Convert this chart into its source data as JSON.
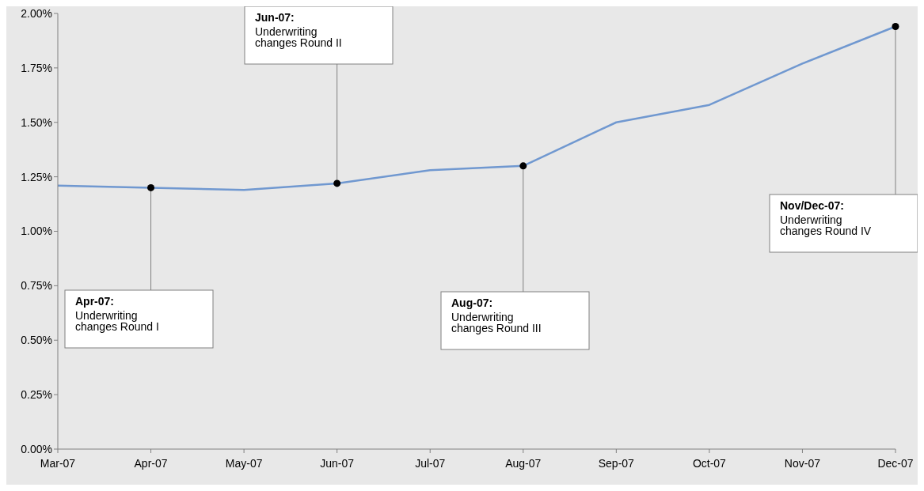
{
  "chart_data": {
    "type": "line",
    "categories": [
      "Mar-07",
      "Apr-07",
      "May-07",
      "Jun-07",
      "Jul-07",
      "Aug-07",
      "Sep-07",
      "Oct-07",
      "Nov-07",
      "Dec-07"
    ],
    "series": [
      {
        "color": "#7098d0",
        "values": [
          1.21,
          1.2,
          1.19,
          1.22,
          1.28,
          1.3,
          1.5,
          1.58,
          1.77,
          1.94
        ]
      }
    ],
    "ylim": [
      0,
      2
    ],
    "yticks": [
      {
        "value": 0,
        "label": "0.00%"
      },
      {
        "value": 0.25,
        "label": "0.25%"
      },
      {
        "value": 0.5,
        "label": "0.50%"
      },
      {
        "value": 0.75,
        "label": "0.75%"
      },
      {
        "value": 1,
        "label": "1.00%"
      },
      {
        "value": 1.25,
        "label": "1.25%"
      },
      {
        "value": 1.5,
        "label": "1.50%"
      },
      {
        "value": 1.75,
        "label": "1.75%"
      },
      {
        "value": 2,
        "label": "2.00%"
      }
    ],
    "grid": false,
    "legend": false,
    "marker": "none",
    "line_style": "solid",
    "annotations": [
      {
        "text": "Apr-07: Underwriting changes Round I",
        "x": "Apr-07",
        "y": 1.2
      },
      "Jun-07: Underwriting changes Round II",
      {
        "text": "Aug-07: Underwriting changes Round III",
        "x": "Aug-07",
        "y": 1.3
      },
      "Nov/Dec-07: Underwriting changes Round IV"
    ]
  }
}
